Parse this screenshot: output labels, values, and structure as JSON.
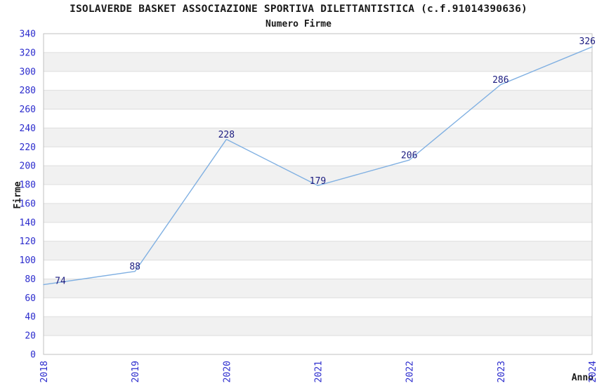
{
  "chart_data": {
    "type": "line",
    "title": "ISOLAVERDE BASKET ASSOCIAZIONE SPORTIVA DILETTANTISTICA (c.f.91014390636)",
    "subtitle": "Numero Firme",
    "xlabel": "Anno",
    "ylabel": "Firme",
    "categories": [
      "2018",
      "2019",
      "2020",
      "2021",
      "2022",
      "2023",
      "2024"
    ],
    "series": [
      {
        "name": "Numero Firme",
        "values": [
          74,
          88,
          228,
          179,
          206,
          286,
          326
        ]
      }
    ],
    "data_labels": [
      "74",
      "88",
      "228",
      "179",
      "206",
      "286",
      "326"
    ],
    "ylim": [
      0,
      340
    ],
    "ytick_step": 20,
    "grid": "horizontal-only",
    "band_fill": "alternating",
    "legend_position": "none",
    "colors": {
      "line": "#80b0e2",
      "tick_label": "#2b2bcd",
      "data_label": "#1c1c80",
      "band": "#f1f1f1",
      "gridline": "#dedede",
      "plot_border": "#c0c0c0",
      "text": "#1a1a1a",
      "background": "#ffffff"
    }
  }
}
